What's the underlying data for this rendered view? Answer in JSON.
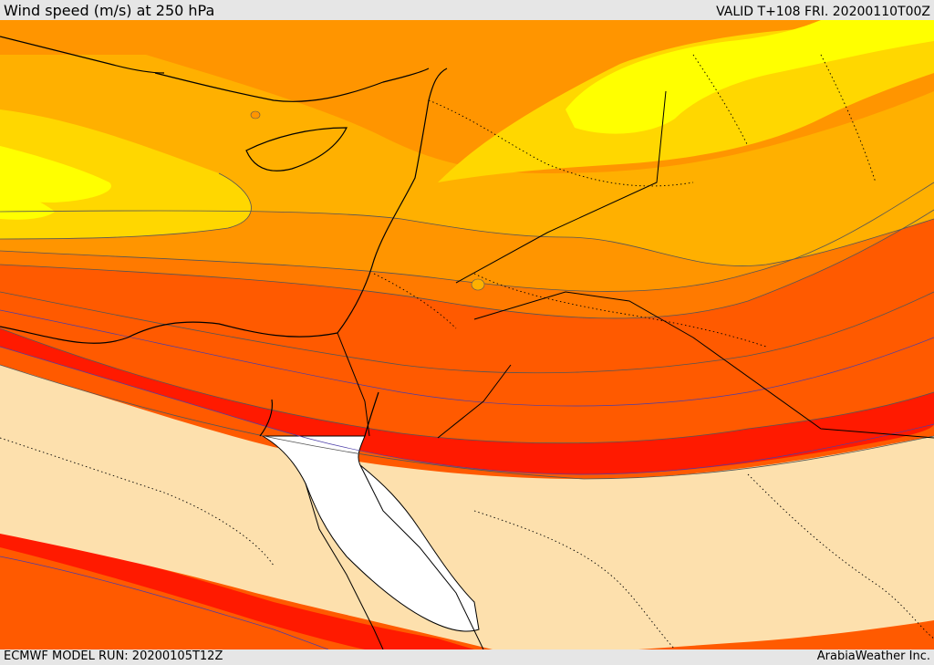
{
  "header": {
    "title": "Wind speed (m/s) at 250 hPa",
    "valid": "VALID T+108 FRI. 20200110T00Z"
  },
  "footer": {
    "model_run": "ECMWF MODEL RUN: 20200105T12Z",
    "credit": "ArabiaWeather Inc."
  },
  "colors": {
    "calm": "#fde0ad",
    "band_1": "#ffff00",
    "band_2": "#ffd700",
    "band_3": "#ffb000",
    "band_4": "#ff9500",
    "band_5": "#ff7a00",
    "band_6": "#ff5a00",
    "band_7": "#ff1a00",
    "sea_white": "#ffffff"
  }
}
